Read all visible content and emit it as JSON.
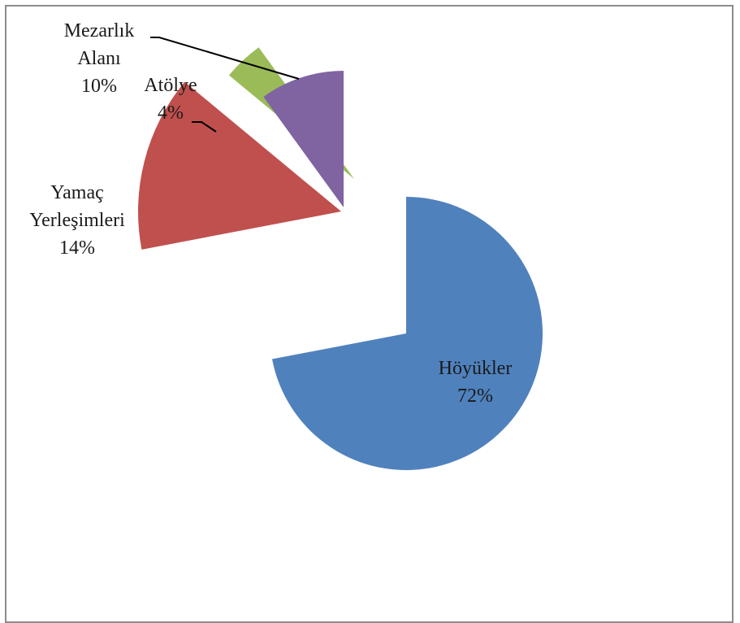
{
  "chart_data": {
    "type": "pie",
    "title": "",
    "categories": [
      "Höyükler",
      "Yamaç Yerleşimleri",
      "Atölye",
      "Mezarlık Alanı"
    ],
    "values": [
      72,
      14,
      4,
      10
    ],
    "unit": "%",
    "slices": [
      {
        "name": "Höyükler",
        "value": 72,
        "value_label": "72%",
        "label_lines": [
          "Höyükler"
        ],
        "color": "#4f81bd",
        "explode": false
      },
      {
        "name": "Yamaç Yerleşimleri",
        "value": 14,
        "value_label": "14%",
        "label_lines": [
          "Yamaç",
          "Yerleşimleri"
        ],
        "color": "#c0504d",
        "explode": true
      },
      {
        "name": "Atölye",
        "value": 4,
        "value_label": "4%",
        "label_lines": [
          "Atölye"
        ],
        "color": "#9bbb59",
        "explode": true
      },
      {
        "name": "Mezarlık Alanı",
        "value": 10,
        "value_label": "10%",
        "label_lines": [
          "Mezarlık",
          "Alanı"
        ],
        "color": "#8064a2",
        "explode": true
      }
    ],
    "start_angle_deg": 0,
    "direction": "clockwise",
    "legend": "none",
    "labels": "data-labels"
  }
}
